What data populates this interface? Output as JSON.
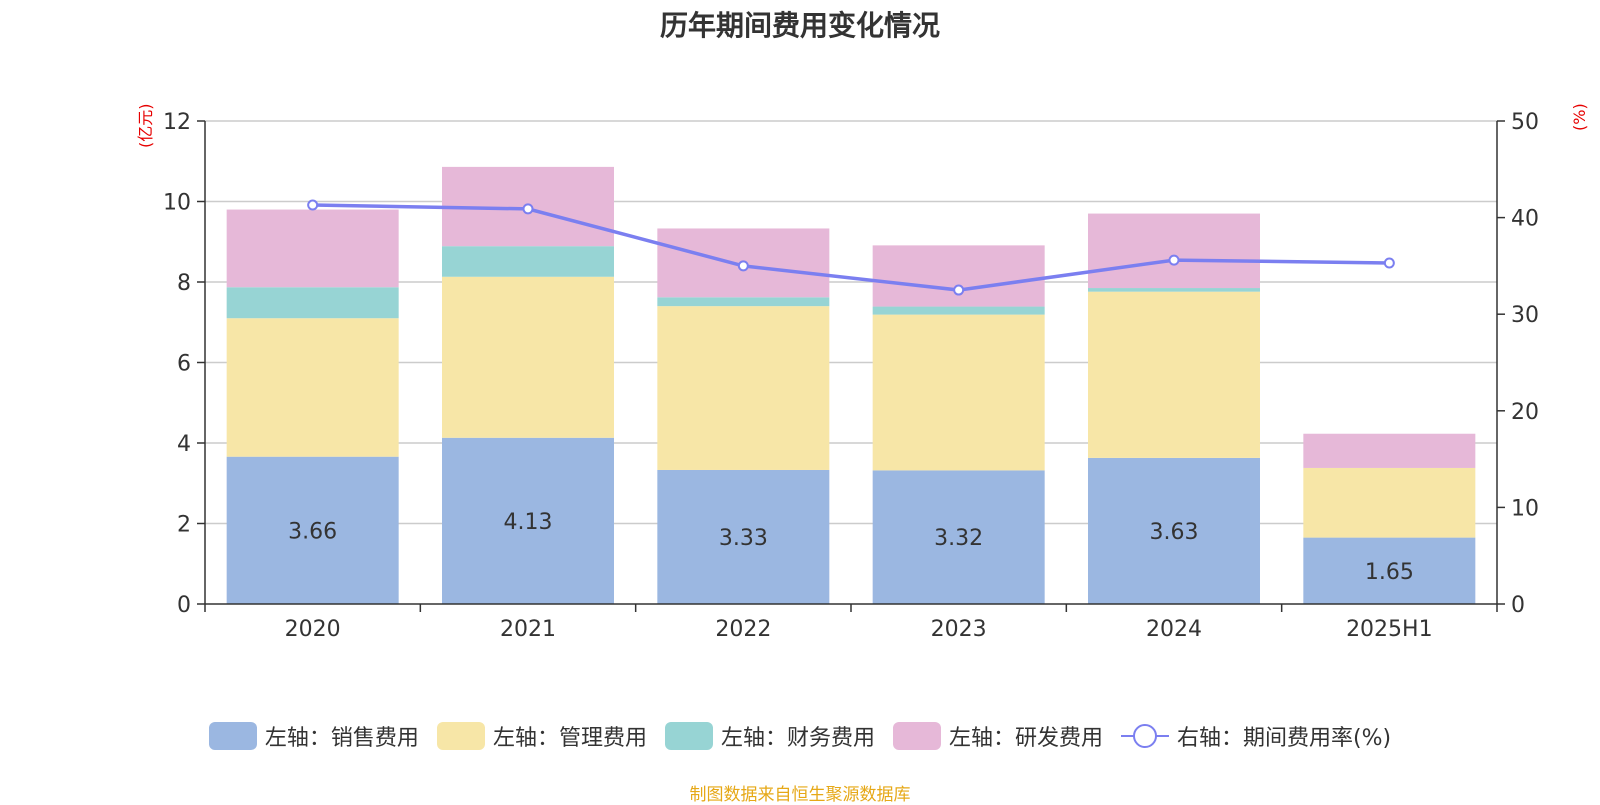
{
  "title": "历年期间费用变化情况",
  "source": "制图数据来自恒生聚源数据库",
  "colors": {
    "sales": "#9bb7e1",
    "admin": "#f7e6a7",
    "finance": "#97d4d4",
    "rd": "#e6b8d8",
    "rate_line": "#7b7ff0",
    "grid": "#cccccc",
    "axis": "#333333",
    "unit_text": "#e60000",
    "source_text": "#e6a817"
  },
  "chart_data": {
    "type": "bar",
    "categories": [
      "2020",
      "2021",
      "2022",
      "2023",
      "2024",
      "2025H1"
    ],
    "left_axis": {
      "unit": "(亿元)",
      "ylim": [
        0,
        12
      ],
      "ticks": [
        "0",
        "2",
        "4",
        "6",
        "8",
        "10",
        "12"
      ]
    },
    "right_axis": {
      "unit": "(%)",
      "ylim": [
        0,
        50
      ],
      "ticks": [
        "0",
        "10",
        "20",
        "30",
        "40",
        "50"
      ]
    },
    "series": [
      {
        "name": "左轴：销售费用",
        "key": "sales",
        "axis": "left",
        "stacked": true,
        "values": [
          3.66,
          4.13,
          3.33,
          3.32,
          3.63,
          1.65
        ],
        "labels": [
          "3.66",
          "4.13",
          "3.33",
          "3.32",
          "3.63",
          "1.65"
        ]
      },
      {
        "name": "左轴：管理费用",
        "key": "admin",
        "axis": "left",
        "stacked": true,
        "values": [
          3.44,
          4.0,
          4.07,
          3.87,
          4.13,
          1.73
        ]
      },
      {
        "name": "左轴：财务费用",
        "key": "finance",
        "axis": "left",
        "stacked": true,
        "values": [
          0.77,
          0.76,
          0.22,
          0.2,
          0.09,
          0.0
        ]
      },
      {
        "name": "左轴：研发费用",
        "key": "rd",
        "axis": "left",
        "stacked": true,
        "values": [
          1.93,
          1.97,
          1.71,
          1.52,
          1.85,
          0.85
        ]
      },
      {
        "name": "右轴：期间费用率(%)",
        "key": "rate",
        "axis": "right",
        "type": "line",
        "values": [
          41.3,
          40.9,
          35.0,
          32.5,
          35.6,
          35.3
        ]
      }
    ],
    "grid": true,
    "legend_position": "bottom"
  }
}
